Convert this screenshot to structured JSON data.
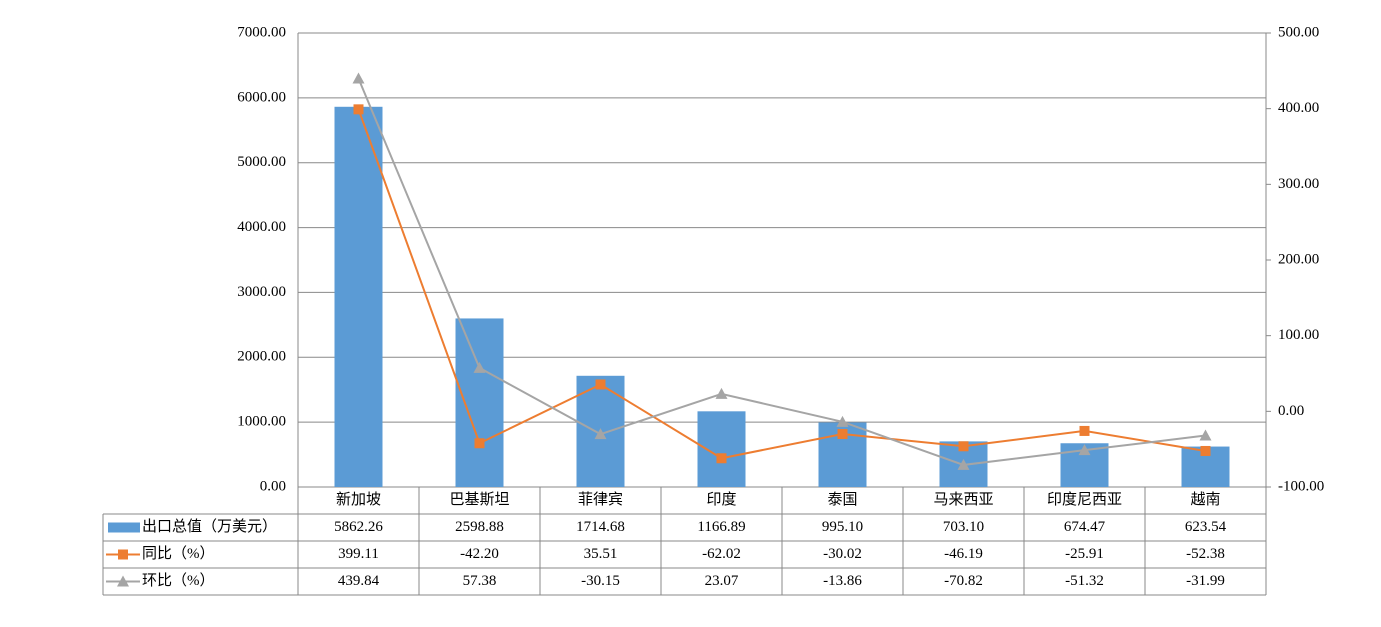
{
  "chart_data": {
    "type": "bar-line-table",
    "categories": [
      "新加坡",
      "巴基斯坦",
      "菲律宾",
      "印度",
      "泰国",
      "马来西亚",
      "印度尼西亚",
      "越南"
    ],
    "series": [
      {
        "name": "出口总值（万美元）",
        "color": "#5b9bd5",
        "kind": "bar",
        "values": [
          5862.26,
          2598.88,
          1714.68,
          1166.89,
          995.1,
          703.1,
          674.47,
          623.54
        ],
        "value_labels": [
          "5862.26",
          "2598.88",
          "1714.68",
          "1166.89",
          "995.10",
          "703.10",
          "674.47",
          "623.54"
        ]
      },
      {
        "name": "同比（%）",
        "color": "#ed7d31",
        "kind": "line",
        "marker": "square",
        "axis": "y2",
        "values": [
          399.11,
          -42.2,
          35.51,
          -62.02,
          -30.02,
          -46.19,
          -25.91,
          -52.38
        ],
        "value_labels": [
          "399.11",
          "-42.20",
          "35.51",
          "-62.02",
          "-30.02",
          "-46.19",
          "-25.91",
          "-52.38"
        ]
      },
      {
        "name": "环比（%）",
        "color": "#a5a5a5",
        "kind": "line",
        "marker": "triangle",
        "axis": "y2",
        "values": [
          439.84,
          57.38,
          -30.15,
          23.07,
          -13.86,
          -70.82,
          -51.32,
          -31.99
        ],
        "value_labels": [
          "439.84",
          "57.38",
          "-30.15",
          "23.07",
          "-13.86",
          "-70.82",
          "-51.32",
          "-31.99"
        ]
      }
    ],
    "ylim": [
      0,
      7000
    ],
    "yticks": [
      {
        "value": 0,
        "label": "0.00"
      },
      {
        "value": 1000,
        "label": "1000.00"
      },
      {
        "value": 2000,
        "label": "2000.00"
      },
      {
        "value": 3000,
        "label": "3000.00"
      },
      {
        "value": 4000,
        "label": "4000.00"
      },
      {
        "value": 5000,
        "label": "5000.00"
      },
      {
        "value": 6000,
        "label": "6000.00"
      },
      {
        "value": 7000,
        "label": "7000.00"
      }
    ],
    "y2lim": [
      -100,
      500
    ],
    "y2ticks": [
      {
        "value": -100,
        "label": "-100.00"
      },
      {
        "value": 0,
        "label": "0.00"
      },
      {
        "value": 100,
        "label": "100.00"
      },
      {
        "value": 200,
        "label": "200.00"
      },
      {
        "value": 300,
        "label": "300.00"
      },
      {
        "value": 400,
        "label": "400.00"
      },
      {
        "value": 500,
        "label": "500.00"
      }
    ],
    "grid": true
  }
}
